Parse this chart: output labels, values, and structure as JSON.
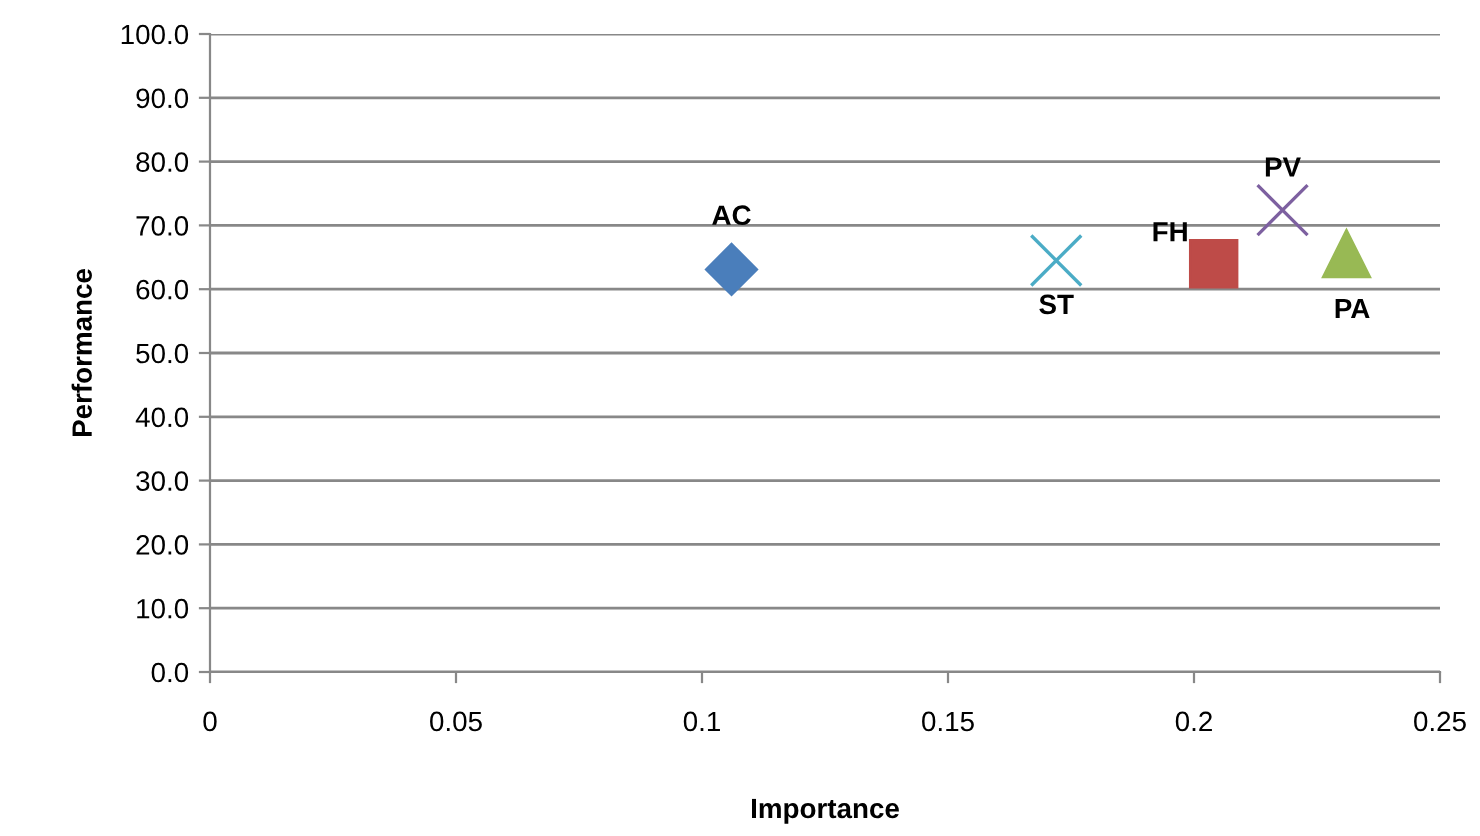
{
  "chart_data": {
    "type": "scatter",
    "xlabel": "Importance",
    "ylabel": "Performance",
    "xlim": [
      0,
      0.25
    ],
    "xticks": [
      {
        "value": 0,
        "label": "0"
      },
      0.05,
      0.1,
      0.15,
      0.2,
      0.25
    ],
    "ylim": [
      0,
      100
    ],
    "yticks": [
      {
        "value": 0,
        "label": "0.0"
      },
      {
        "value": 10,
        "label": "10.0"
      },
      {
        "value": 20,
        "label": "20.0"
      },
      {
        "value": 30,
        "label": "30.0"
      },
      {
        "value": 40,
        "label": "40.0"
      },
      {
        "value": 50,
        "label": "50.0"
      },
      {
        "value": 60,
        "label": "60.0"
      },
      {
        "value": 70,
        "label": "70.0"
      },
      {
        "value": 80,
        "label": "80.0"
      },
      {
        "value": 90,
        "label": "90.0"
      },
      {
        "value": 100,
        "label": "100.0"
      }
    ],
    "grid": "y",
    "legend": false,
    "series": [
      {
        "name": "AC",
        "color": "#4a7ebb",
        "marker": "diamond",
        "x": [
          0.106
        ],
        "values": [
          63.1
        ]
      },
      {
        "name": "ST",
        "color": "#4bacc6",
        "marker": "cross",
        "x": [
          0.172
        ],
        "values": [
          64.5
        ]
      },
      {
        "name": "FH",
        "color": "#be4b48",
        "marker": "square",
        "x": [
          0.204
        ],
        "values": [
          64.0
        ]
      },
      {
        "name": "PV",
        "color": "#7d60a0",
        "marker": "cross",
        "x": [
          0.218
        ],
        "values": [
          72.4
        ]
      },
      {
        "name": "PA",
        "color": "#98b954",
        "marker": "triangle",
        "x": [
          0.231
        ],
        "values": [
          65.6
        ]
      }
    ]
  }
}
